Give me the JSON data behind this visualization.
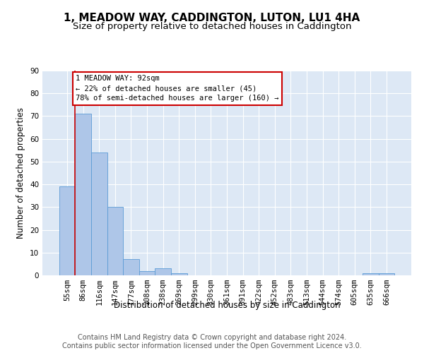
{
  "title": "1, MEADOW WAY, CADDINGTON, LUTON, LU1 4HA",
  "subtitle": "Size of property relative to detached houses in Caddington",
  "xlabel": "Distribution of detached houses by size in Caddington",
  "ylabel": "Number of detached properties",
  "footer_line1": "Contains HM Land Registry data © Crown copyright and database right 2024.",
  "footer_line2": "Contains public sector information licensed under the Open Government Licence v3.0.",
  "bar_labels": [
    "55sqm",
    "86sqm",
    "116sqm",
    "147sqm",
    "177sqm",
    "208sqm",
    "238sqm",
    "269sqm",
    "299sqm",
    "330sqm",
    "361sqm",
    "391sqm",
    "422sqm",
    "452sqm",
    "483sqm",
    "513sqm",
    "544sqm",
    "574sqm",
    "605sqm",
    "635sqm",
    "666sqm"
  ],
  "bar_values": [
    39,
    71,
    54,
    30,
    7,
    2,
    3,
    1,
    0,
    0,
    0,
    0,
    0,
    0,
    0,
    0,
    0,
    0,
    0,
    1,
    1
  ],
  "bar_color": "#aec6e8",
  "bar_edge_color": "#5b9bd5",
  "background_color": "#dde8f5",
  "grid_color": "#ffffff",
  "annotation_box_text": "1 MEADOW WAY: 92sqm\n← 22% of detached houses are smaller (45)\n78% of semi-detached houses are larger (160) →",
  "annotation_box_color": "#ffffff",
  "annotation_box_edge_color": "#cc0000",
  "ylim": [
    0,
    90
  ],
  "yticks": [
    0,
    10,
    20,
    30,
    40,
    50,
    60,
    70,
    80,
    90
  ],
  "title_fontsize": 11,
  "subtitle_fontsize": 9.5,
  "axis_label_fontsize": 8.5,
  "tick_fontsize": 7.5,
  "annotation_fontsize": 7.5,
  "footer_fontsize": 7
}
